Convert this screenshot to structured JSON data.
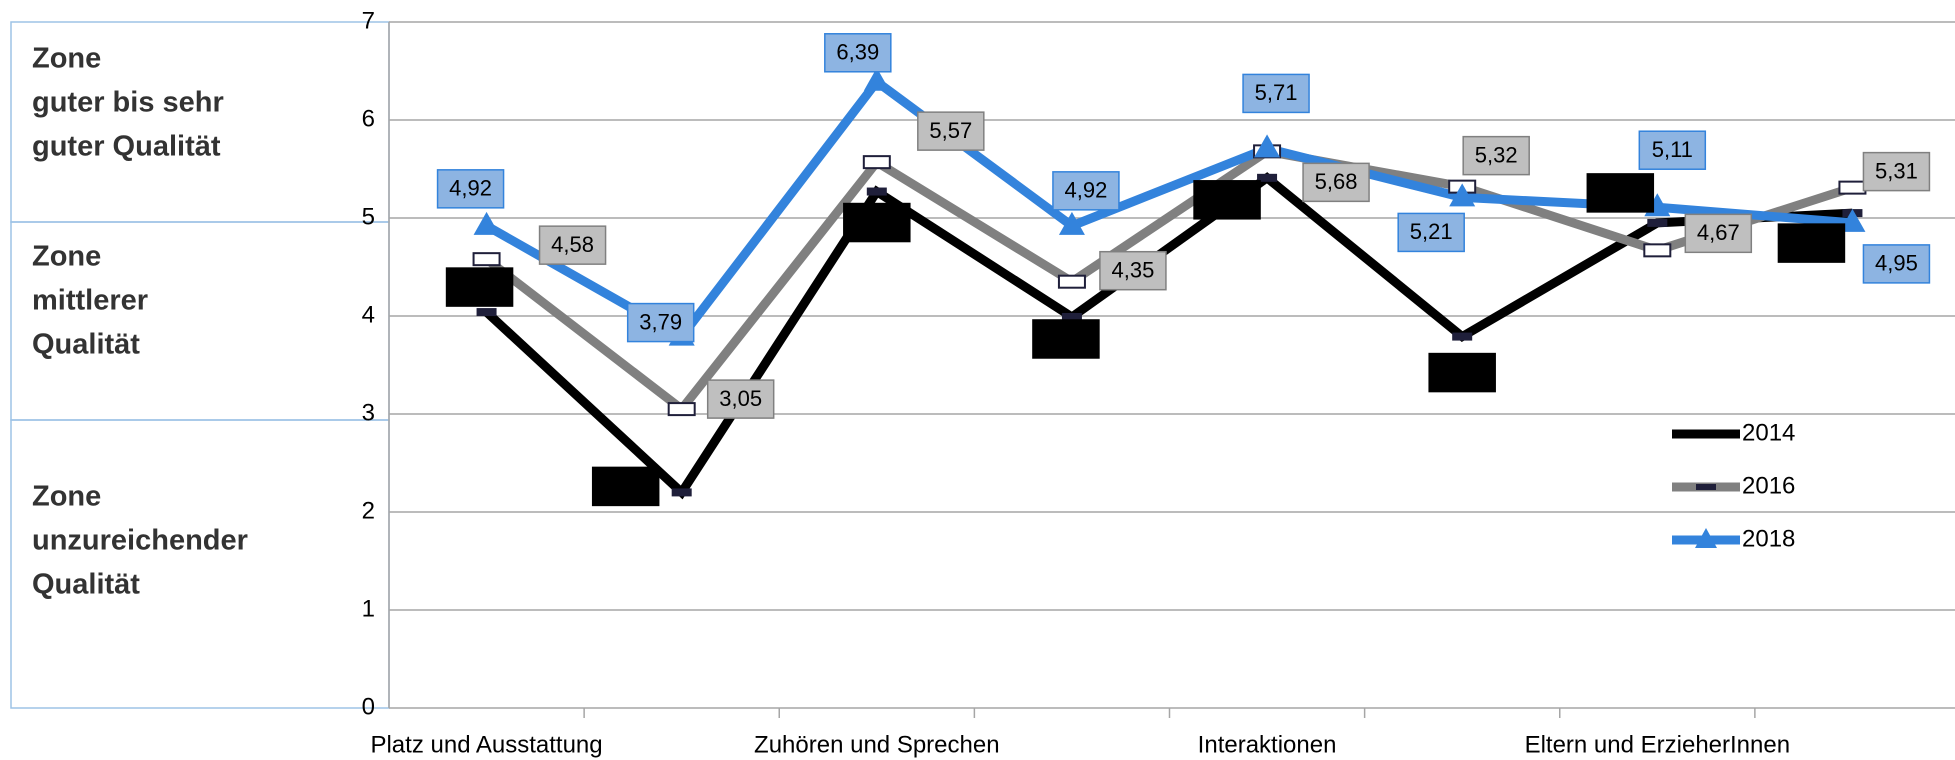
{
  "chart_data": {
    "type": "line",
    "zones": [
      [
        "Zone",
        "guter bis sehr",
        "guter Qualität"
      ],
      [
        "Zone",
        "mittlerer",
        "Qualität"
      ],
      [
        "Zone",
        "unzureichender",
        "Qualität"
      ]
    ],
    "categories": [
      "Platz und Ausstattung",
      null,
      "Zuhören und Sprechen",
      null,
      "Interaktionen",
      null,
      "Eltern und ErzieherInnen",
      null
    ],
    "series": [
      {
        "name": "2014",
        "color": "#000000",
        "values": [
          4.04,
          2.2,
          5.27,
          3.99,
          5.41,
          3.79,
          4.95,
          5.05
        ],
        "value_labels": [
          "4,04",
          "2,20",
          "5,27",
          "3,99",
          "5,41",
          "3,79",
          "4,95",
          "5,05"
        ]
      },
      {
        "name": "2016",
        "color": "#808080",
        "values": [
          4.58,
          3.05,
          5.57,
          4.35,
          5.68,
          5.32,
          4.67,
          5.31
        ],
        "value_labels": [
          "4,58",
          "3,05",
          "5,57",
          "4,35",
          "5,68",
          "5,32",
          "4,67",
          "5,31"
        ]
      },
      {
        "name": "2018",
        "color": "#3383dc",
        "values": [
          4.92,
          3.79,
          6.39,
          4.92,
          5.71,
          5.21,
          5.11,
          4.95
        ],
        "value_labels": [
          "4,92",
          "3,79",
          "6,39",
          "4,92",
          "5,71",
          "5,21",
          "5,11",
          "4,95"
        ]
      }
    ],
    "ylim": [
      0,
      7
    ],
    "yticks": [
      0,
      1,
      2,
      3,
      4,
      5,
      6,
      7
    ],
    "grid": true
  }
}
